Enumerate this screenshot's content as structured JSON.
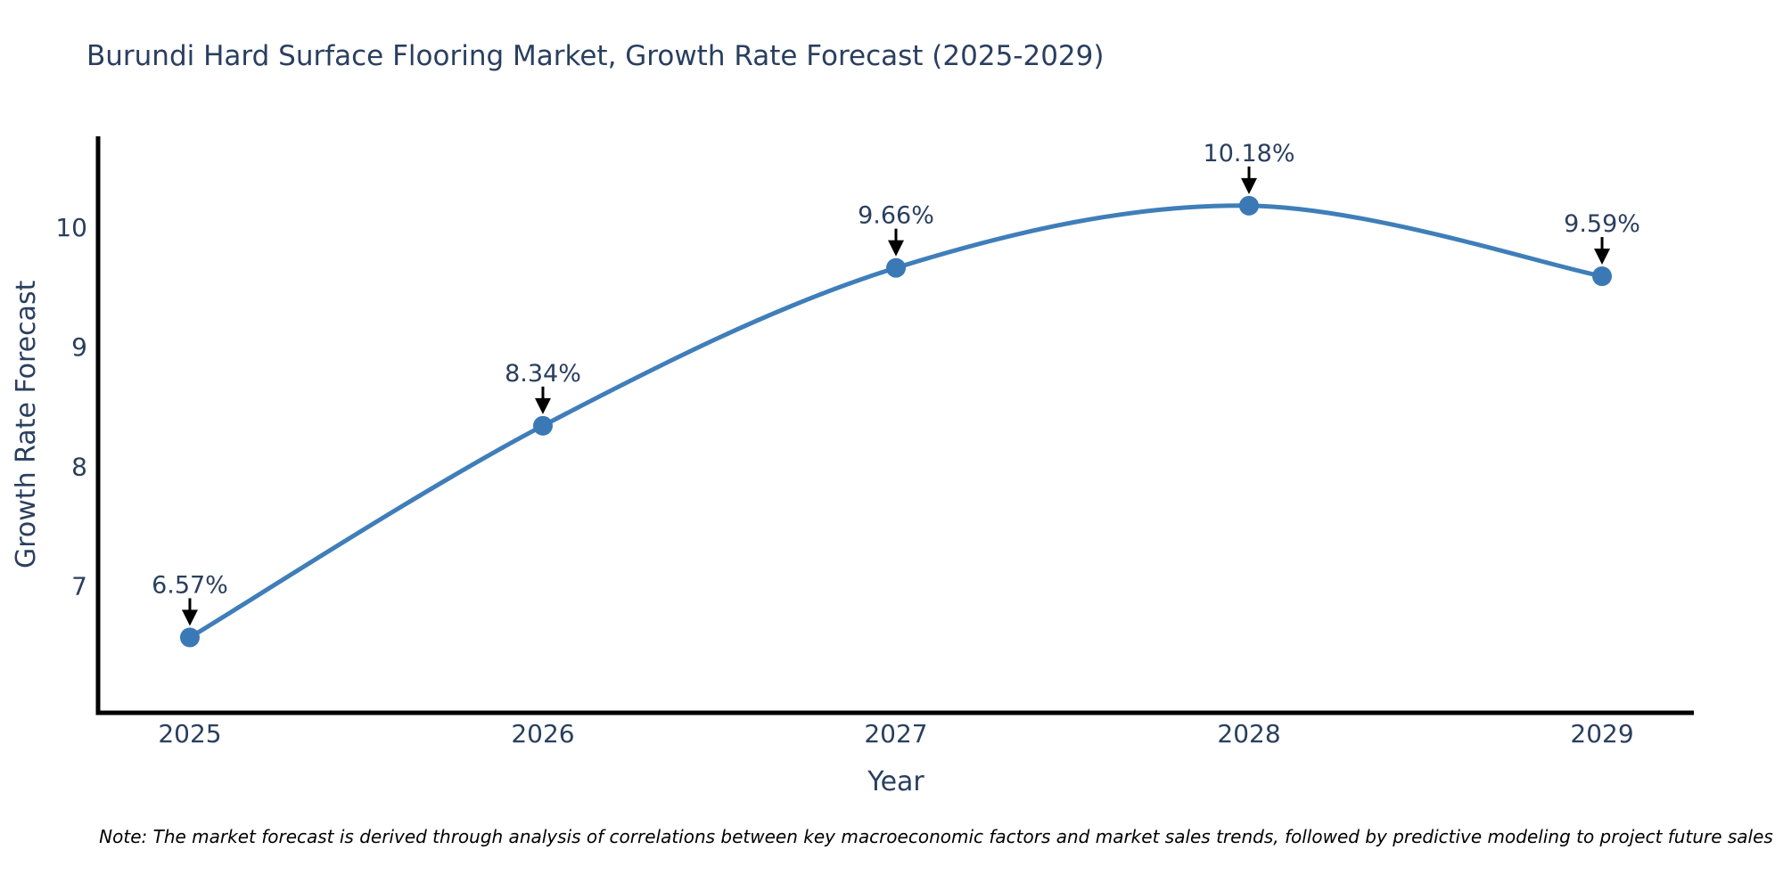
{
  "title": "Burundi Hard Surface Flooring Market, Growth Rate Forecast (2025-2029)",
  "note": "Note: The market forecast is derived through analysis of correlations between key macroeconomic factors and market sales trends, followed by predictive modeling to project future sales",
  "chart_data": {
    "type": "line",
    "title": "Burundi Hard Surface Flooring Market, Growth Rate Forecast (2025-2029)",
    "x": [
      2025,
      2026,
      2027,
      2028,
      2029
    ],
    "values": [
      6.57,
      8.34,
      9.66,
      10.18,
      9.59
    ],
    "point_labels": [
      "6.57%",
      "8.34%",
      "9.66%",
      "10.18%",
      "9.59%"
    ],
    "xlabel": "Year",
    "ylabel": "Growth Rate Forecast",
    "xticks": [
      2025,
      2026,
      2027,
      2028,
      2029
    ],
    "yticks": [
      7,
      8,
      9,
      10
    ],
    "xlim": [
      2024.74,
      2029.26
    ],
    "ylim": [
      5.94,
      10.76
    ],
    "grid": false,
    "legend": "none",
    "line_shape": "spline",
    "marker": "circle",
    "annotation_style": "value-label-with-down-arrow",
    "colors": {
      "line": "#3f7eb9",
      "marker": "#3a79b5",
      "axis": "#000000",
      "text": "#2a3f5f",
      "arrow": "#000000",
      "note_text": "#000000",
      "background": "#ffffff"
    }
  }
}
